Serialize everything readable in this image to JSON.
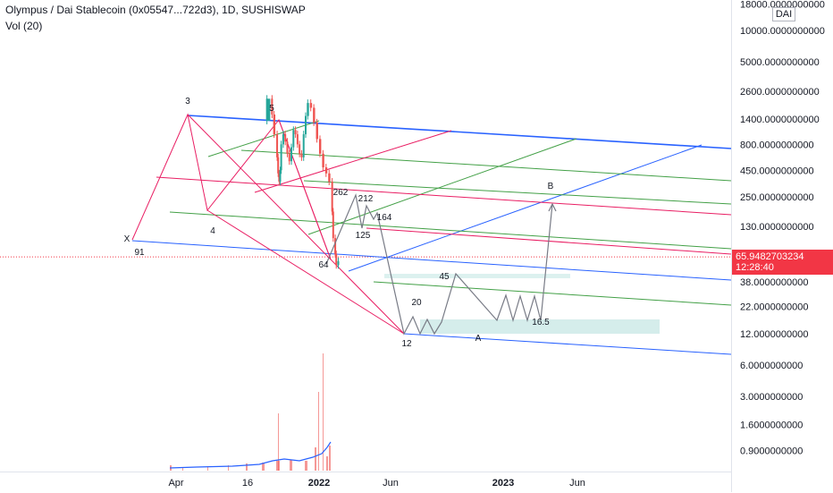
{
  "header": {
    "symbol_line": "Olympus / Dai Stablecoin (0x05547...722d3), 1D, SUSHISWAP",
    "vol_label": "Vol (20)"
  },
  "currency_badge": "DAI",
  "current_price": {
    "value": "65.9482703234",
    "countdown": "12:28:40",
    "color": "#f23645"
  },
  "chart_data": {
    "type": "line",
    "title": "Olympus / Dai Stablecoin (0x05547...722d3), 1D, SUSHISWAP",
    "y_scale": "log",
    "y_range": [
      0.75,
      20000
    ],
    "x_ticks": [
      "Apr",
      "16",
      "2022",
      "Jun",
      "2023",
      "Jun"
    ],
    "y_ticks": [
      "18000.0000000000",
      "10000.0000000000",
      "5000.0000000000",
      "2600.0000000000",
      "1400.0000000000",
      "800.0000000000",
      "450.0000000000",
      "250.0000000000",
      "130.0000000000",
      "65.9482703234",
      "38.0000000000",
      "22.0000000000",
      "12.0000000000",
      "6.0000000000",
      "3.0000000000",
      "1.6000000000",
      "0.9000000000"
    ],
    "wave_labels": [
      "3",
      "5",
      "4",
      "X",
      "91",
      "262",
      "212",
      "164",
      "125",
      "64",
      "45",
      "20",
      "12",
      "A",
      "16.5",
      "B"
    ],
    "price_path": [
      [
        90,
        1350
      ],
      [
        95,
        2200
      ],
      [
        97,
        1550
      ],
      [
        100,
        1000
      ],
      [
        101,
        600
      ],
      [
        102,
        420
      ],
      [
        103,
        350
      ],
      [
        104,
        450
      ],
      [
        106,
        800
      ],
      [
        108,
        1000
      ],
      [
        110,
        850
      ],
      [
        112,
        650
      ],
      [
        114,
        550
      ],
      [
        116,
        750
      ],
      [
        118,
        1100
      ],
      [
        120,
        1000
      ],
      [
        122,
        800
      ],
      [
        124,
        650
      ],
      [
        126,
        600
      ],
      [
        128,
        1000
      ],
      [
        130,
        1500
      ],
      [
        133,
        2000
      ],
      [
        136,
        1800
      ],
      [
        139,
        1300
      ],
      [
        142,
        900
      ],
      [
        145,
        650
      ],
      [
        148,
        480
      ],
      [
        151,
        420
      ],
      [
        154,
        350
      ],
      [
        155,
        180
      ],
      [
        157,
        100
      ],
      [
        158,
        70
      ],
      [
        160,
        55
      ],
      [
        162,
        60
      ]
    ],
    "colors": {
      "candle_up": "#26a69a",
      "candle_down": "#ef5350",
      "projection": "#787b86",
      "channel_blue": "#2962ff",
      "channel_pink": "#e91e63",
      "channel_green": "#43a047",
      "zone": "#b2dfdb",
      "volume_ma": "#2962ff"
    },
    "grid": false
  }
}
